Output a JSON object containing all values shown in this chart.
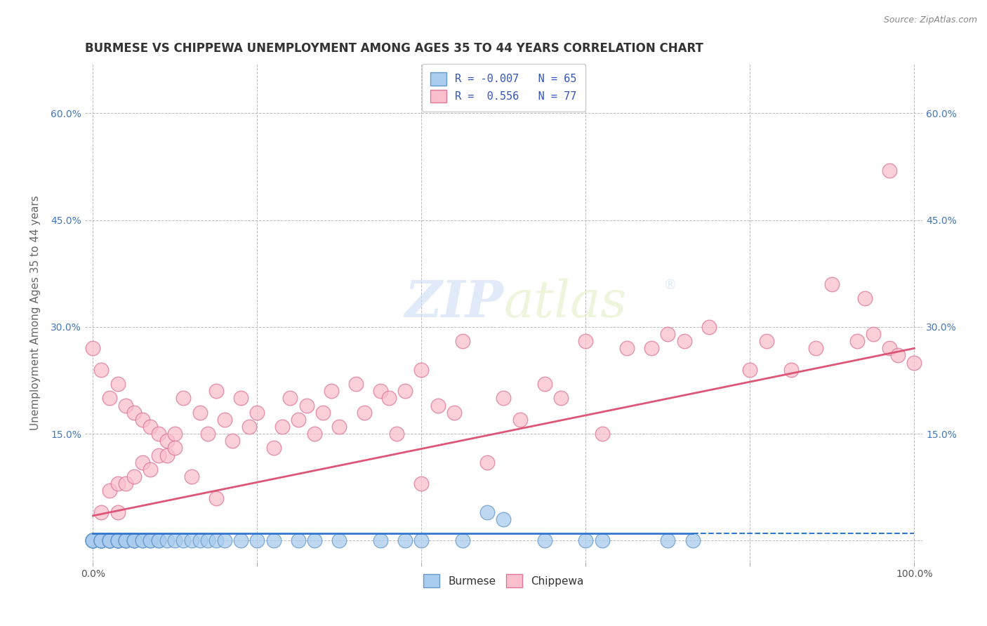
{
  "title": "BURMESE VS CHIPPEWA UNEMPLOYMENT AMONG AGES 35 TO 44 YEARS CORRELATION CHART",
  "source": "Source: ZipAtlas.com",
  "ylabel": "Unemployment Among Ages 35 to 44 years",
  "xlim": [
    -1,
    101
  ],
  "ylim": [
    -3,
    67
  ],
  "xticks": [
    0,
    20,
    40,
    60,
    80,
    100
  ],
  "xticklabels": [
    "0.0%",
    "",
    "",
    "",
    "",
    "100.0%"
  ],
  "yticks": [
    0,
    15,
    30,
    45,
    60
  ],
  "yticklabels": [
    "",
    "15.0%",
    "30.0%",
    "45.0%",
    "60.0%"
  ],
  "burmese_R": -0.007,
  "burmese_N": 65,
  "chippewa_R": 0.556,
  "chippewa_N": 77,
  "burmese_color": "#aaccee",
  "burmese_edge": "#6699cc",
  "chippewa_color": "#f9bfcc",
  "chippewa_edge": "#dd7799",
  "burmese_line_color": "#3377cc",
  "chippewa_line_color": "#dd5577",
  "watermark_color": "#ddeeff",
  "background_color": "#ffffff",
  "grid_color": "#bbbbbb",
  "title_color": "#333333",
  "legend_R_color": "#3355bb",
  "burmese_x": [
    0,
    0,
    0,
    0,
    0,
    0,
    0,
    0,
    1,
    1,
    1,
    1,
    1,
    1,
    2,
    2,
    2,
    2,
    2,
    2,
    2,
    3,
    3,
    3,
    3,
    3,
    3,
    4,
    4,
    4,
    4,
    5,
    5,
    5,
    6,
    6,
    7,
    7,
    8,
    8,
    9,
    10,
    11,
    12,
    13,
    14,
    15,
    16,
    18,
    20,
    22,
    25,
    27,
    30,
    35,
    38,
    40,
    45,
    55,
    60,
    62,
    70,
    73,
    50,
    48
  ],
  "burmese_y": [
    0,
    0,
    0,
    0,
    0,
    0,
    0,
    0,
    0,
    0,
    0,
    0,
    0,
    0,
    0,
    0,
    0,
    0,
    0,
    0,
    0,
    0,
    0,
    0,
    0,
    0,
    0,
    0,
    0,
    0,
    0,
    0,
    0,
    0,
    0,
    0,
    0,
    0,
    0,
    0,
    0,
    0,
    0,
    0,
    0,
    0,
    0,
    0,
    0,
    0,
    0,
    0,
    0,
    0,
    0,
    0,
    0,
    0,
    0,
    0,
    0,
    0,
    0,
    3,
    4
  ],
  "chippewa_x": [
    0,
    1,
    1,
    2,
    2,
    3,
    3,
    3,
    4,
    4,
    5,
    5,
    6,
    6,
    7,
    7,
    8,
    8,
    9,
    9,
    10,
    10,
    11,
    12,
    13,
    14,
    15,
    15,
    16,
    17,
    18,
    19,
    20,
    22,
    23,
    24,
    25,
    26,
    27,
    28,
    29,
    30,
    32,
    33,
    35,
    36,
    37,
    38,
    40,
    40,
    42,
    44,
    45,
    48,
    50,
    52,
    55,
    57,
    60,
    62,
    65,
    68,
    70,
    72,
    75,
    80,
    82,
    85,
    88,
    90,
    93,
    95,
    97,
    98,
    100,
    97,
    94
  ],
  "chippewa_y": [
    27,
    24,
    4,
    20,
    7,
    22,
    8,
    4,
    19,
    8,
    18,
    9,
    17,
    11,
    16,
    10,
    15,
    12,
    14,
    12,
    15,
    13,
    20,
    9,
    18,
    15,
    21,
    6,
    17,
    14,
    20,
    16,
    18,
    13,
    16,
    20,
    17,
    19,
    15,
    18,
    21,
    16,
    22,
    18,
    21,
    20,
    15,
    21,
    24,
    8,
    19,
    18,
    28,
    11,
    20,
    17,
    22,
    20,
    28,
    15,
    27,
    27,
    29,
    28,
    30,
    24,
    28,
    24,
    27,
    36,
    28,
    29,
    27,
    26,
    25,
    52,
    34
  ],
  "chippewa_line_start_y": 3.5,
  "chippewa_line_end_y": 27.0,
  "burmese_line_y": 1.0
}
